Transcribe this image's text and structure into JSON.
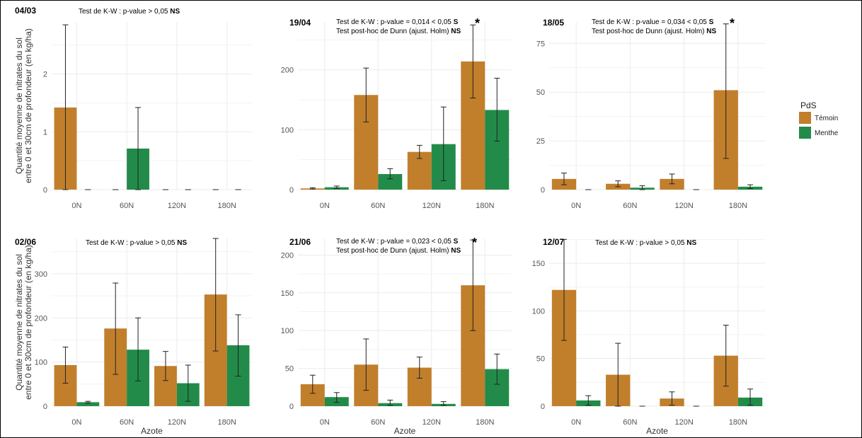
{
  "chart_data": {
    "type": "bar",
    "categories": [
      "0N",
      "60N",
      "120N",
      "180N"
    ],
    "xlabel": "Azote",
    "ylabel": "Quantité moyenne de nitrates du sol\nentre 0 et 30cm de profondeur (en kg/ha)",
    "legend": {
      "title": "PdS",
      "position": "right",
      "entries": [
        {
          "name": "Témoin",
          "color": "#c17f2c"
        },
        {
          "name": "Menthe",
          "color": "#238b4a"
        }
      ]
    },
    "grid": true,
    "panels": [
      {
        "title": "04/03",
        "test": {
          "text": "Test de K-W : p-value > 0,05 ",
          "bold": "NS"
        },
        "posthoc": null,
        "star": "",
        "ylim": [
          0,
          2.9
        ],
        "yticks": [
          0,
          1,
          2
        ],
        "series": [
          {
            "name": "Témoin",
            "values": [
              1.42,
              0,
              0,
              0
            ],
            "err_low": [
              0,
              0,
              0,
              0
            ],
            "err_high": [
              2.85,
              0,
              0,
              0
            ]
          },
          {
            "name": "Menthe",
            "values": [
              0,
              0.71,
              0,
              0
            ],
            "err_low": [
              0,
              0,
              0,
              0
            ],
            "err_high": [
              0,
              1.42,
              0,
              0
            ]
          }
        ]
      },
      {
        "title": "19/04",
        "test": {
          "text": "Test de K-W : p-value = 0,014 < 0,05 ",
          "bold": "S"
        },
        "posthoc": {
          "text": "Test post-hoc de Dunn (ajust. Holm) ",
          "bold": "NS"
        },
        "star": "*",
        "ylim": [
          0,
          280
        ],
        "yticks": [
          0,
          100,
          200
        ],
        "series": [
          {
            "name": "Témoin",
            "values": [
              2,
              158,
              63,
              214
            ],
            "err_low": [
              1,
              113,
              52,
              153
            ],
            "err_high": [
              3,
              203,
              74,
              275
            ]
          },
          {
            "name": "Menthe",
            "values": [
              4,
              26,
              76,
              133
            ],
            "err_low": [
              2,
              18,
              15,
              81
            ],
            "err_high": [
              6,
              35,
              138,
              186
            ]
          }
        ]
      },
      {
        "title": "18/05",
        "test": {
          "text": "Test de K-W : p-value = 0,034 < 0,05 ",
          "bold": "S"
        },
        "posthoc": {
          "text": "Test post-hoc de Dunn (ajust. Holm) ",
          "bold": "NS"
        },
        "star": "*",
        "ylim": [
          0,
          86
        ],
        "yticks": [
          0,
          25,
          50,
          75
        ],
        "series": [
          {
            "name": "Témoin",
            "values": [
              5.5,
              3,
              5.5,
              51
            ],
            "err_low": [
              2.5,
              1.5,
              3,
              16
            ],
            "err_high": [
              8.5,
              4.5,
              8,
              85
            ]
          },
          {
            "name": "Menthe",
            "values": [
              0,
              1,
              0,
              1.5
            ],
            "err_low": [
              0,
              0,
              0,
              0.5
            ],
            "err_high": [
              0,
              2,
              0,
              2.5
            ]
          }
        ]
      },
      {
        "title": "02/06",
        "test": {
          "text": "Test de K-W : p-value > 0,05 ",
          "bold": "NS"
        },
        "posthoc": null,
        "star": "",
        "ylim": [
          0,
          380
        ],
        "yticks": [
          0,
          100,
          200,
          300
        ],
        "series": [
          {
            "name": "Témoin",
            "values": [
              93,
              176,
              91,
              253
            ],
            "err_low": [
              52,
              72,
              58,
              125
            ],
            "err_high": [
              134,
              279,
              124,
              380
            ]
          },
          {
            "name": "Menthe",
            "values": [
              9,
              128,
              52,
              138
            ],
            "err_low": [
              7,
              57,
              11,
              68
            ],
            "err_high": [
              11,
              200,
              93,
              207
            ]
          }
        ]
      },
      {
        "title": "21/06",
        "test": {
          "text": "Test de K-W : p-value = 0,023 < 0,05 ",
          "bold": "S"
        },
        "posthoc": {
          "text": "Test post-hoc de Dunn (ajust. Holm) ",
          "bold": "NS"
        },
        "star": "*",
        "ylim": [
          0,
          222
        ],
        "yticks": [
          0,
          50,
          100,
          150,
          200
        ],
        "series": [
          {
            "name": "Témoin",
            "values": [
              29,
              55,
              51,
              160
            ],
            "err_low": [
              17,
              21,
              37,
              100
            ],
            "err_high": [
              41,
              89,
              65,
              220
            ]
          },
          {
            "name": "Menthe",
            "values": [
              12,
              4,
              3,
              49
            ],
            "err_low": [
              5,
              1,
              1,
              29
            ],
            "err_high": [
              18,
              8,
              6,
              69
            ]
          }
        ]
      },
      {
        "title": "12/07",
        "test": {
          "text": "Test de K-W : p-value > 0,05 ",
          "bold": "NS"
        },
        "posthoc": null,
        "star": "",
        "ylim": [
          0,
          176
        ],
        "yticks": [
          0,
          50,
          100,
          150
        ],
        "series": [
          {
            "name": "Témoin",
            "values": [
              122,
              33,
              8,
              53
            ],
            "err_low": [
              69,
              0,
              1,
              21
            ],
            "err_high": [
              175,
              66,
              15,
              85
            ]
          },
          {
            "name": "Menthe",
            "values": [
              6,
              0,
              0,
              9
            ],
            "err_low": [
              1,
              0,
              0,
              1
            ],
            "err_high": [
              11,
              0,
              0,
              18
            ]
          }
        ]
      }
    ]
  }
}
